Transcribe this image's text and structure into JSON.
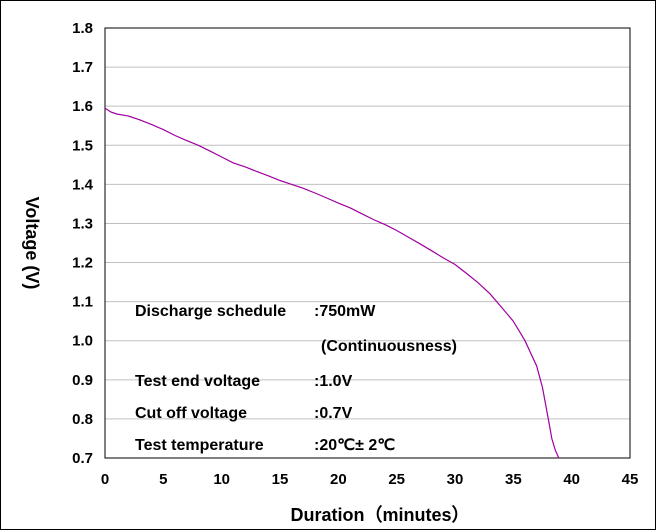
{
  "chart_data": {
    "type": "line",
    "title": "",
    "xlabel": "Duration（minutes）",
    "ylabel": "Voltage (V)",
    "xlim": [
      0,
      45
    ],
    "ylim": [
      0.7,
      1.8
    ],
    "x_ticks": [
      "0",
      "5",
      "10",
      "15",
      "20",
      "25",
      "30",
      "35",
      "40",
      "45"
    ],
    "y_ticks": [
      "0.7",
      "0.8",
      "0.9",
      "1.0",
      "1.1",
      "1.2",
      "1.3",
      "1.4",
      "1.5",
      "1.6",
      "1.7",
      "1.8"
    ],
    "grid": "horizontal",
    "line_color": "#a000a0",
    "series": [
      {
        "x": [
          0,
          0.5,
          1,
          2,
          3,
          4,
          5,
          6,
          7,
          8,
          9,
          10,
          11,
          12,
          13,
          14,
          15,
          16,
          17,
          18,
          19,
          20,
          21,
          22,
          23,
          24,
          25,
          26,
          27,
          28,
          29,
          30,
          31,
          32,
          33,
          34,
          35,
          36,
          37,
          37.5,
          38,
          38.3,
          38.6,
          38.9
        ],
        "y": [
          1.595,
          1.585,
          1.58,
          1.575,
          1.565,
          1.553,
          1.54,
          1.525,
          1.512,
          1.5,
          1.485,
          1.47,
          1.455,
          1.445,
          1.433,
          1.422,
          1.41,
          1.4,
          1.39,
          1.378,
          1.365,
          1.352,
          1.34,
          1.325,
          1.31,
          1.297,
          1.282,
          1.265,
          1.248,
          1.23,
          1.212,
          1.195,
          1.172,
          1.148,
          1.12,
          1.085,
          1.05,
          1.0,
          0.935,
          0.88,
          0.8,
          0.75,
          0.72,
          0.7
        ]
      }
    ]
  },
  "notes": {
    "schedule_label": "Discharge schedule",
    "schedule_value": ":750mW",
    "schedule_mode": "(Continuousness)",
    "end_voltage_label": "Test end voltage",
    "end_voltage_value": ":1.0V",
    "cutoff_label": "Cut off voltage",
    "cutoff_value": ":0.7V",
    "temperature_label": "Test temperature",
    "temperature_value": ":20℃± 2℃"
  }
}
